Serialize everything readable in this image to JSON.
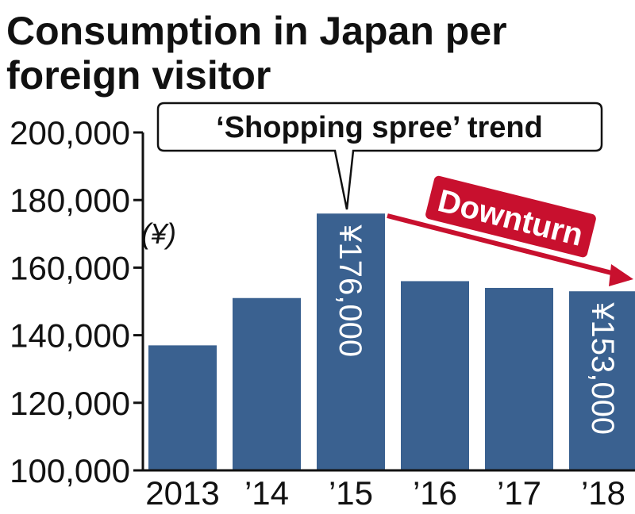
{
  "chart_data": {
    "type": "bar",
    "title_lines": [
      "Consumption in Japan per",
      "foreign visitor"
    ],
    "ylabel": "(¥)",
    "ylim": [
      100000,
      200000
    ],
    "yticks": [
      "100,000",
      "120,000",
      "140,000",
      "160,000",
      "180,000",
      "200,000"
    ],
    "ytick_values": [
      100000,
      120000,
      140000,
      160000,
      180000,
      200000
    ],
    "categories": [
      "2013",
      "’14",
      "’15",
      "’16",
      "’17",
      "’18"
    ],
    "values": [
      137000,
      151000,
      176000,
      156000,
      154000,
      153000
    ],
    "bar_color": "#3a6190",
    "annotations": {
      "callout": "‘Shopping spree’ trend",
      "trend_label": "Downturn",
      "trend_color": "#c8102e",
      "bar_value_labels": [
        {
          "index": 2,
          "text": "¥176,000"
        },
        {
          "index": 5,
          "text": "¥153,000"
        }
      ]
    }
  }
}
